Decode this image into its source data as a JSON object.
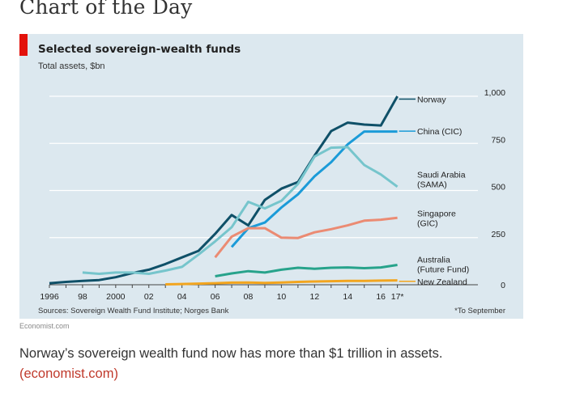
{
  "page": {
    "heading": "Chart of the Day",
    "credit": "Economist.com",
    "caption": "Norway’s sovereign wealth fund now has more than $1 trillion in assets.",
    "caption_link": "(economist.com)"
  },
  "chart": {
    "sources": "Sources: Sovereign Wealth Fund Institute; Norges Bank",
    "footnote": "*To September"
  },
  "colors": {
    "brand_red": "#e3120b",
    "panel_bg": "#dce8ef",
    "grid": "#ffffff",
    "link": "#c0392b"
  },
  "chart_data": {
    "type": "line",
    "title": "Selected sovereign-wealth funds",
    "subtitle": "Total assets, $bn",
    "xlabel": "",
    "ylabel": "",
    "xlim": [
      1996,
      2017.8
    ],
    "ylim": [
      0,
      1000
    ],
    "y_axis_position": "right",
    "grid": true,
    "legend": "direct labels at line ends",
    "x_ticks": [
      1996,
      1997,
      1998,
      1999,
      2000,
      2001,
      2002,
      2003,
      2004,
      2005,
      2006,
      2007,
      2008,
      2009,
      2010,
      2011,
      2012,
      2013,
      2014,
      2015,
      2016,
      2017
    ],
    "x_tick_labels": [
      {
        "x": 1996,
        "label": "1996"
      },
      {
        "x": 1998,
        "label": "98"
      },
      {
        "x": 2000,
        "label": "2000"
      },
      {
        "x": 2002,
        "label": "02"
      },
      {
        "x": 2004,
        "label": "04"
      },
      {
        "x": 2006,
        "label": "06"
      },
      {
        "x": 2008,
        "label": "08"
      },
      {
        "x": 2010,
        "label": "10"
      },
      {
        "x": 2012,
        "label": "12"
      },
      {
        "x": 2014,
        "label": "14"
      },
      {
        "x": 2016,
        "label": "16"
      },
      {
        "x": 2017,
        "label": "17*"
      }
    ],
    "y_ticks": [
      {
        "value": 0,
        "label": "0"
      },
      {
        "value": 250,
        "label": "250"
      },
      {
        "value": 500,
        "label": "500"
      },
      {
        "value": 750,
        "label": "750"
      },
      {
        "value": 1000,
        "label": "1,000"
      }
    ],
    "series": [
      {
        "name": "Norway",
        "color": "#0f5068",
        "label_lines": [
          "Norway"
        ],
        "label_anchor": 985,
        "x": [
          1996,
          1997,
          1998,
          1999,
          2000,
          2001,
          2002,
          2003,
          2004,
          2005,
          2006,
          2007,
          2008,
          2009,
          2010,
          2011,
          2012,
          2013,
          2014,
          2015,
          2016,
          2017
        ],
        "values": [
          8,
          15,
          20,
          25,
          40,
          62,
          80,
          110,
          145,
          180,
          270,
          370,
          315,
          450,
          510,
          545,
          685,
          815,
          860,
          850,
          845,
          1000
        ]
      },
      {
        "name": "China (CIC)",
        "color": "#1b9bd8",
        "label_lines": [
          "China (CIC)"
        ],
        "label_anchor": 815,
        "x": [
          2007,
          2008,
          2009,
          2010,
          2011,
          2012,
          2013,
          2014,
          2015,
          2016,
          2017
        ],
        "values": [
          200,
          300,
          330,
          410,
          480,
          575,
          650,
          745,
          813,
          813,
          813
        ]
      },
      {
        "name": "Saudi Arabia (SAMA)",
        "color": "#76c5cc",
        "label_lines": [
          "Saudi Arabia",
          "(SAMA)"
        ],
        "label_anchor": 560,
        "x": [
          1998,
          1999,
          2000,
          2001,
          2002,
          2003,
          2004,
          2005,
          2006,
          2007,
          2008,
          2009,
          2010,
          2011,
          2012,
          2013,
          2014,
          2015,
          2016,
          2017
        ],
        "values": [
          65,
          58,
          65,
          65,
          58,
          75,
          95,
          160,
          230,
          305,
          440,
          405,
          445,
          535,
          680,
          727,
          730,
          635,
          585,
          520
        ]
      },
      {
        "name": "Singapore (GIC)",
        "color": "#eb8b73",
        "label_lines": [
          "Singapore",
          "(GIC)"
        ],
        "label_anchor": 355,
        "x": [
          2006,
          2007,
          2008,
          2009,
          2010,
          2011,
          2012,
          2013,
          2014,
          2015,
          2016,
          2017
        ],
        "values": [
          145,
          255,
          300,
          300,
          250,
          248,
          278,
          295,
          315,
          340,
          345,
          355
        ]
      },
      {
        "name": "Australia (Future Fund)",
        "color": "#27a38b",
        "label_lines": [
          "Australia",
          "(Future Fund)"
        ],
        "label_anchor": 110,
        "x": [
          2006,
          2007,
          2008,
          2009,
          2010,
          2011,
          2012,
          2013,
          2014,
          2015,
          2016,
          2017
        ],
        "values": [
          45,
          60,
          72,
          65,
          80,
          90,
          85,
          90,
          92,
          88,
          92,
          105
        ]
      },
      {
        "name": "New Zealand",
        "color": "#f2a51f",
        "label_lines": [
          "New Zealand"
        ],
        "label_anchor": 18,
        "x": [
          2003,
          2004,
          2005,
          2006,
          2007,
          2008,
          2009,
          2010,
          2011,
          2012,
          2013,
          2014,
          2015,
          2016,
          2017
        ],
        "values": [
          2,
          4,
          6,
          8,
          11,
          12,
          10,
          12,
          15,
          17,
          19,
          20,
          20,
          22,
          23
        ]
      }
    ]
  }
}
